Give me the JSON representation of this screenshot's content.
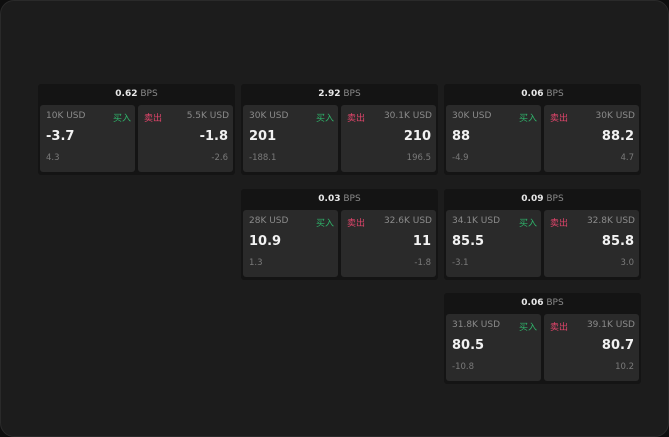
{
  "colors": {
    "buy": "#2fb36a",
    "sell": "#e0456b",
    "background": "#1c1c1c"
  },
  "buy_label": "买入",
  "sell_label": "卖出",
  "unit": "BPS",
  "cards": [
    {
      "spread": "0.62",
      "buy": {
        "size": "10K USD",
        "price": "-3.7",
        "change": "4.3"
      },
      "sell": {
        "size": "5.5K USD",
        "price": "-1.8",
        "change": "-2.6"
      }
    },
    {
      "spread": "2.92",
      "buy": {
        "size": "30K USD",
        "price": "201",
        "change": "-188.1"
      },
      "sell": {
        "size": "30.1K USD",
        "price": "210",
        "change": "196.5"
      }
    },
    {
      "spread": "0.06",
      "buy": {
        "size": "30K USD",
        "price": "88",
        "change": "-4.9"
      },
      "sell": {
        "size": "30K USD",
        "price": "88.2",
        "change": "4.7"
      }
    },
    {
      "spread": "0.03",
      "buy": {
        "size": "28K USD",
        "price": "10.9",
        "change": "1.3"
      },
      "sell": {
        "size": "32.6K USD",
        "price": "11",
        "change": "-1.8"
      }
    },
    {
      "spread": "0.09",
      "buy": {
        "size": "34.1K USD",
        "price": "85.5",
        "change": "-3.1"
      },
      "sell": {
        "size": "32.8K USD",
        "price": "85.8",
        "change": "3.0"
      }
    },
    {
      "spread": "0.06",
      "buy": {
        "size": "31.8K USD",
        "price": "80.5",
        "change": "-10.8"
      },
      "sell": {
        "size": "39.1K USD",
        "price": "80.7",
        "change": "10.2"
      }
    }
  ]
}
